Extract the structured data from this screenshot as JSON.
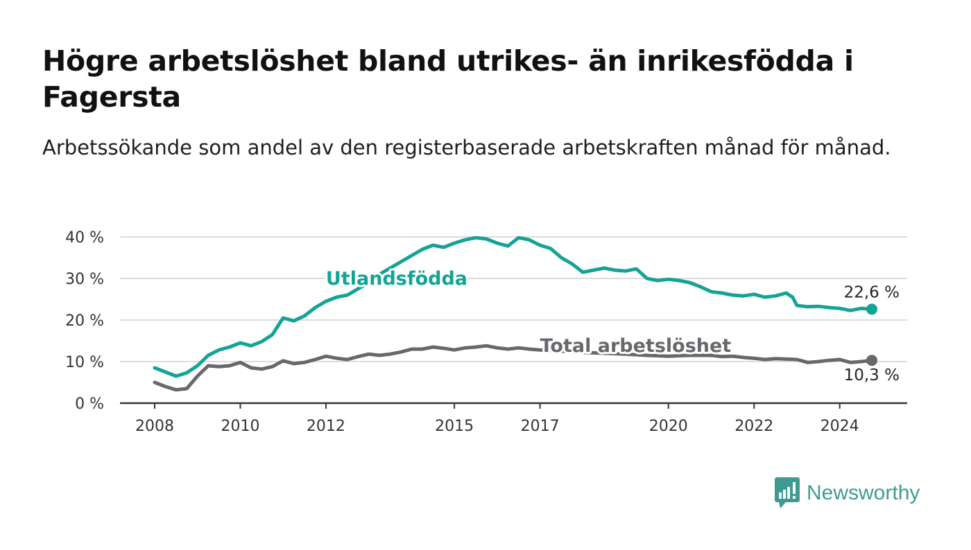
{
  "title": "Högre arbetslöshet bland utrikes- än inrikesfödda i Fagersta",
  "subtitle": "Arbetssökande som andel av den registerbaserade arbetskraften månad för månad.",
  "brand": {
    "name": "Newsworthy",
    "icon": "bar-chart-speech-bubble-icon",
    "color": "#3f9b92"
  },
  "chart_data": {
    "type": "line",
    "x_ticks": [
      "2008",
      "2010",
      "2012",
      "2015",
      "2017",
      "2020",
      "2022",
      "2024"
    ],
    "y_ticks": [
      "0 %",
      "10 %",
      "20 %",
      "30 %",
      "40 %"
    ],
    "ylim": [
      0,
      40
    ],
    "xlim": [
      2008.0,
      2024.75
    ],
    "grid": true,
    "legend": "inline labels",
    "series": [
      {
        "name": "Utlandsfödda",
        "color": "#14a396",
        "end_label": "22,6 %",
        "points": [
          [
            2008.0,
            8.5
          ],
          [
            2008.25,
            7.5
          ],
          [
            2008.5,
            6.5
          ],
          [
            2008.75,
            7.3
          ],
          [
            2009.0,
            9.0
          ],
          [
            2009.25,
            11.5
          ],
          [
            2009.5,
            12.8
          ],
          [
            2009.75,
            13.5
          ],
          [
            2010.0,
            14.5
          ],
          [
            2010.25,
            13.8
          ],
          [
            2010.5,
            14.8
          ],
          [
            2010.75,
            16.5
          ],
          [
            2011.0,
            20.5
          ],
          [
            2011.25,
            19.8
          ],
          [
            2011.5,
            21.0
          ],
          [
            2011.75,
            23.0
          ],
          [
            2012.0,
            24.5
          ],
          [
            2012.25,
            25.5
          ],
          [
            2012.5,
            26.0
          ],
          [
            2012.75,
            27.5
          ],
          [
            2013.0,
            29.0
          ],
          [
            2013.25,
            31.0
          ],
          [
            2013.5,
            32.5
          ],
          [
            2013.75,
            34.0
          ],
          [
            2014.0,
            35.5
          ],
          [
            2014.25,
            37.0
          ],
          [
            2014.5,
            38.0
          ],
          [
            2014.75,
            37.5
          ],
          [
            2015.0,
            38.5
          ],
          [
            2015.25,
            39.3
          ],
          [
            2015.5,
            39.8
          ],
          [
            2015.75,
            39.5
          ],
          [
            2016.0,
            38.5
          ],
          [
            2016.25,
            37.8
          ],
          [
            2016.5,
            39.8
          ],
          [
            2016.75,
            39.3
          ],
          [
            2017.0,
            38.0
          ],
          [
            2017.25,
            37.2
          ],
          [
            2017.5,
            35.0
          ],
          [
            2017.75,
            33.5
          ],
          [
            2018.0,
            31.5
          ],
          [
            2018.25,
            32.0
          ],
          [
            2018.5,
            32.5
          ],
          [
            2018.75,
            32.0
          ],
          [
            2019.0,
            31.8
          ],
          [
            2019.25,
            32.3
          ],
          [
            2019.5,
            30.0
          ],
          [
            2019.75,
            29.5
          ],
          [
            2020.0,
            29.8
          ],
          [
            2020.25,
            29.5
          ],
          [
            2020.5,
            29.0
          ],
          [
            2020.75,
            28.0
          ],
          [
            2021.0,
            26.8
          ],
          [
            2021.25,
            26.5
          ],
          [
            2021.5,
            26.0
          ],
          [
            2021.75,
            25.8
          ],
          [
            2022.0,
            26.2
          ],
          [
            2022.25,
            25.5
          ],
          [
            2022.5,
            25.8
          ],
          [
            2022.75,
            26.5
          ],
          [
            2022.9,
            25.5
          ],
          [
            2023.0,
            23.5
          ],
          [
            2023.25,
            23.2
          ],
          [
            2023.5,
            23.3
          ],
          [
            2023.75,
            23.0
          ],
          [
            2024.0,
            22.8
          ],
          [
            2024.25,
            22.3
          ],
          [
            2024.5,
            22.8
          ],
          [
            2024.75,
            22.6
          ]
        ]
      },
      {
        "name": "Total arbetslöshet",
        "color": "#68676c",
        "end_label": "10,3 %",
        "points": [
          [
            2008.0,
            5.0
          ],
          [
            2008.25,
            4.0
          ],
          [
            2008.5,
            3.2
          ],
          [
            2008.75,
            3.5
          ],
          [
            2009.0,
            6.5
          ],
          [
            2009.25,
            9.0
          ],
          [
            2009.5,
            8.8
          ],
          [
            2009.75,
            9.0
          ],
          [
            2010.0,
            9.8
          ],
          [
            2010.25,
            8.5
          ],
          [
            2010.5,
            8.2
          ],
          [
            2010.75,
            8.8
          ],
          [
            2011.0,
            10.2
          ],
          [
            2011.25,
            9.5
          ],
          [
            2011.5,
            9.8
          ],
          [
            2011.75,
            10.5
          ],
          [
            2012.0,
            11.3
          ],
          [
            2012.25,
            10.8
          ],
          [
            2012.5,
            10.5
          ],
          [
            2012.75,
            11.2
          ],
          [
            2013.0,
            11.8
          ],
          [
            2013.25,
            11.5
          ],
          [
            2013.5,
            11.8
          ],
          [
            2013.75,
            12.3
          ],
          [
            2014.0,
            13.0
          ],
          [
            2014.25,
            13.0
          ],
          [
            2014.5,
            13.5
          ],
          [
            2014.75,
            13.2
          ],
          [
            2015.0,
            12.8
          ],
          [
            2015.25,
            13.3
          ],
          [
            2015.5,
            13.5
          ],
          [
            2015.75,
            13.8
          ],
          [
            2016.0,
            13.3
          ],
          [
            2016.25,
            13.0
          ],
          [
            2016.5,
            13.3
          ],
          [
            2016.75,
            13.0
          ],
          [
            2017.0,
            12.8
          ],
          [
            2017.5,
            12.5
          ],
          [
            2018.0,
            12.2
          ],
          [
            2018.5,
            12.0
          ],
          [
            2019.0,
            11.8
          ],
          [
            2019.5,
            11.5
          ],
          [
            2020.0,
            11.3
          ],
          [
            2020.5,
            11.5
          ],
          [
            2021.0,
            11.5
          ],
          [
            2021.25,
            11.2
          ],
          [
            2021.5,
            11.3
          ],
          [
            2021.75,
            11.0
          ],
          [
            2022.0,
            10.8
          ],
          [
            2022.25,
            10.5
          ],
          [
            2022.5,
            10.7
          ],
          [
            2022.75,
            10.6
          ],
          [
            2023.0,
            10.5
          ],
          [
            2023.25,
            9.8
          ],
          [
            2023.5,
            10.0
          ],
          [
            2023.75,
            10.3
          ],
          [
            2024.0,
            10.5
          ],
          [
            2024.25,
            9.8
          ],
          [
            2024.5,
            10.0
          ],
          [
            2024.75,
            10.3
          ]
        ]
      }
    ],
    "inline_labels": [
      {
        "series": 0,
        "text": "Utlandsfödda",
        "at": [
          2012.0,
          28.5
        ]
      },
      {
        "series": 1,
        "text": "Total arbetslöshet",
        "at": [
          2017.0,
          12.3
        ]
      }
    ]
  }
}
